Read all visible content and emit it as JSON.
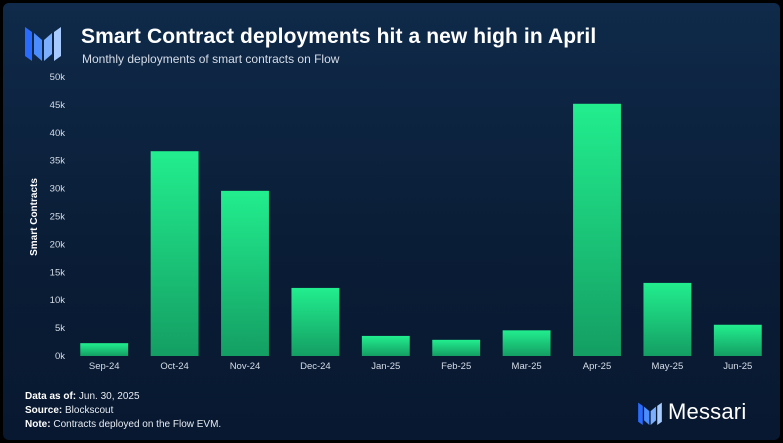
{
  "header": {
    "title": "Smart Contract deployments hit a new high in April",
    "subtitle": "Monthly deployments of smart contracts on Flow"
  },
  "footer": {
    "data_as_of_label": "Data as of:",
    "data_as_of_value": "Jun. 30, 2025",
    "source_label": "Source:",
    "source_value": "Blockscout",
    "note_label": "Note:",
    "note_value": "Contracts deployed on the Flow EVM."
  },
  "brand": {
    "name": "Messari"
  },
  "colors": {
    "bar_top": "#22ee8e",
    "bar_bottom": "#149e63",
    "axis_text": "#d6dde8",
    "grid": "#23395a"
  },
  "chart_data": {
    "type": "bar",
    "title": "Smart Contract deployments hit a new high in April",
    "subtitle": "Monthly deployments of smart contracts on Flow",
    "xlabel": "",
    "ylabel": "Smart Contracts",
    "categories": [
      "Sep-24",
      "Oct-24",
      "Nov-24",
      "Dec-24",
      "Jan-25",
      "Feb-25",
      "Mar-25",
      "Apr-25",
      "May-25",
      "Jun-25"
    ],
    "values": [
      2300,
      36700,
      29600,
      12200,
      3600,
      2900,
      4600,
      45200,
      13100,
      5600
    ],
    "ylim": [
      0,
      50000
    ],
    "yticks": [
      0,
      5000,
      10000,
      15000,
      20000,
      25000,
      30000,
      35000,
      40000,
      45000,
      50000
    ],
    "ytick_labels": [
      "0k",
      "5k",
      "10k",
      "15k",
      "20k",
      "25k",
      "30k",
      "35k",
      "40k",
      "45k",
      "50k"
    ],
    "grid": false,
    "legend": "none"
  }
}
